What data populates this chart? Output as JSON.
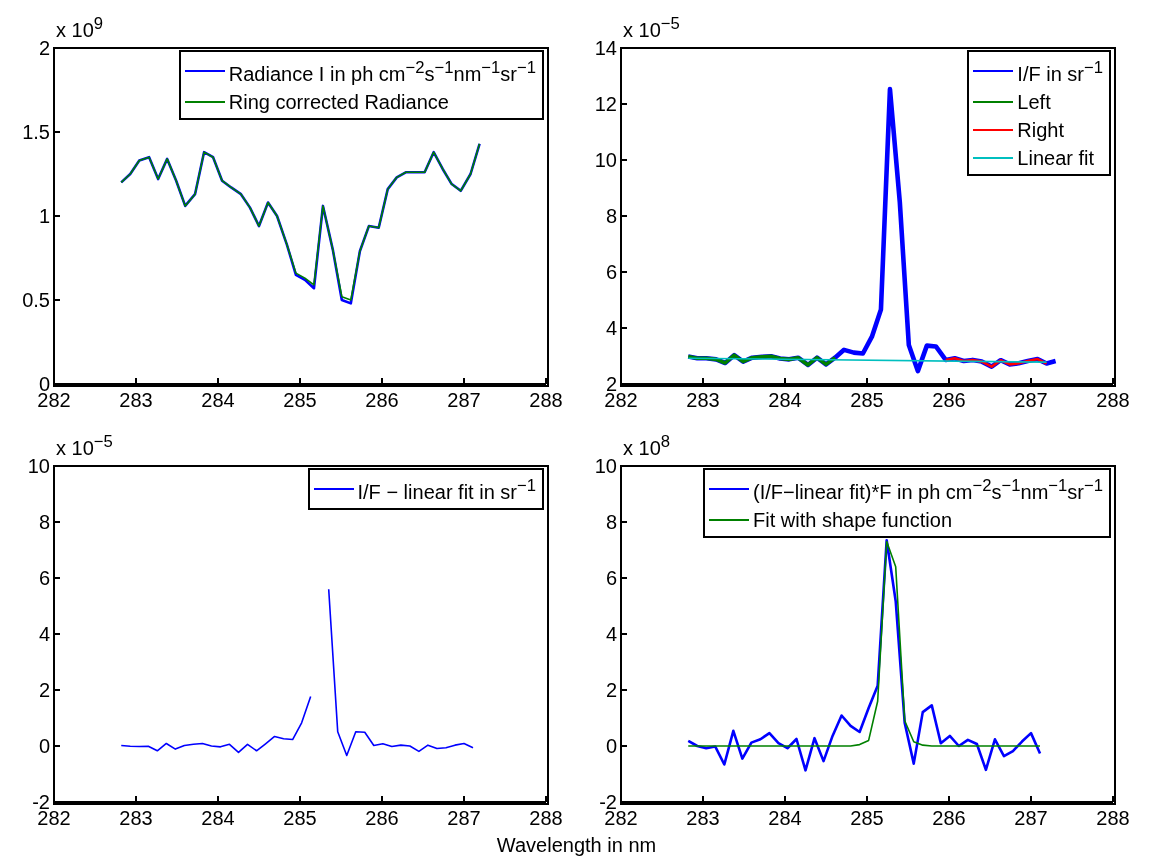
{
  "chart_data": [
    {
      "type": "line",
      "annotations": [
        "x 10$^{9}$"
      ],
      "xlim": [
        282,
        288
      ],
      "xticks": [
        282,
        283,
        284,
        285,
        286,
        287,
        288
      ],
      "ylim": [
        0,
        2
      ],
      "yticks": [
        0,
        0.5,
        1,
        1.5,
        2
      ],
      "legend": "top right",
      "grid": false,
      "series": [
        {
          "name": "Radiance I in ph cm$^{−2}$s$^{−1}$nm$^{−1}$sr$^{−1}$",
          "color": "#0000ff",
          "x": [
            282.82,
            282.93,
            283.04,
            283.16,
            283.27,
            283.38,
            283.49,
            283.6,
            283.72,
            283.83,
            283.94,
            284.05,
            284.16,
            284.28,
            284.39,
            284.5,
            284.61,
            284.72,
            284.84,
            284.95,
            285.06,
            285.17,
            285.28,
            285.4,
            285.51,
            285.62,
            285.73,
            285.84,
            285.96,
            286.07,
            286.18,
            286.29,
            286.4,
            286.52,
            286.63,
            286.74,
            286.85,
            286.96,
            287.08,
            287.19
          ],
          "values": [
            1.2,
            1.25,
            1.33,
            1.35,
            1.22,
            1.34,
            1.21,
            1.06,
            1.13,
            1.38,
            1.35,
            1.21,
            1.17,
            1.13,
            1.05,
            0.94,
            1.08,
            1.0,
            0.83,
            0.65,
            0.62,
            0.57,
            1.06,
            0.8,
            0.5,
            0.48,
            0.79,
            0.94,
            0.93,
            1.16,
            1.23,
            1.26,
            1.26,
            1.26,
            1.38,
            1.28,
            1.19,
            1.15,
            1.25,
            1.43
          ]
        },
        {
          "name": "Ring corrected Radiance",
          "color": "#008000",
          "x": [
            282.82,
            282.93,
            283.04,
            283.16,
            283.27,
            283.38,
            283.49,
            283.6,
            283.72,
            283.83,
            283.94,
            284.05,
            284.16,
            284.28,
            284.39,
            284.5,
            284.61,
            284.72,
            284.84,
            284.95,
            285.06,
            285.17,
            285.28,
            285.4,
            285.51,
            285.62,
            285.73,
            285.84,
            285.96,
            286.07,
            286.18,
            286.29,
            286.4,
            286.52,
            286.63,
            286.74,
            286.85,
            286.96,
            287.08,
            287.19
          ],
          "values": [
            1.2,
            1.25,
            1.33,
            1.35,
            1.22,
            1.34,
            1.21,
            1.06,
            1.13,
            1.38,
            1.35,
            1.21,
            1.17,
            1.13,
            1.05,
            0.94,
            1.08,
            1.0,
            0.83,
            0.66,
            0.63,
            0.59,
            1.06,
            0.8,
            0.52,
            0.5,
            0.79,
            0.94,
            0.93,
            1.16,
            1.23,
            1.26,
            1.26,
            1.26,
            1.38,
            1.28,
            1.19,
            1.15,
            1.25,
            1.43
          ]
        }
      ]
    },
    {
      "type": "line",
      "annotations": [
        "x 10$^{−5}$"
      ],
      "xlim": [
        282,
        288
      ],
      "xticks": [
        282,
        283,
        284,
        285,
        286,
        287,
        288
      ],
      "ylim": [
        2,
        14
      ],
      "yticks": [
        2,
        4,
        6,
        8,
        10,
        12,
        14
      ],
      "legend": "top right",
      "grid": false,
      "series": [
        {
          "name": "I/F in sr$^{−1}$",
          "color": "#0000ff",
          "x": [
            282.82,
            282.93,
            283.04,
            283.16,
            283.27,
            283.38,
            283.49,
            283.6,
            283.72,
            283.83,
            283.94,
            284.05,
            284.16,
            284.28,
            284.39,
            284.5,
            284.61,
            284.72,
            284.84,
            284.95,
            285.06,
            285.17,
            285.28,
            285.4,
            285.51,
            285.62,
            285.73,
            285.84,
            285.96,
            286.07,
            286.18,
            286.29,
            286.4,
            286.52,
            286.63,
            286.74,
            286.85,
            286.96,
            287.08,
            287.19,
            287.3
          ],
          "values": [
            2.98,
            2.92,
            2.92,
            2.88,
            2.75,
            3.03,
            2.8,
            2.94,
            2.97,
            2.99,
            2.91,
            2.88,
            2.94,
            2.68,
            2.94,
            2.7,
            2.94,
            3.22,
            3.12,
            3.09,
            3.69,
            4.66,
            12.53,
            8.5,
            3.39,
            2.46,
            3.37,
            3.34,
            2.86,
            2.92,
            2.82,
            2.86,
            2.8,
            2.62,
            2.85,
            2.7,
            2.74,
            2.82,
            2.89,
            2.73,
            2.82
          ]
        },
        {
          "name": "Left",
          "color": "#008000",
          "x": [
            282.82,
            282.93,
            283.04,
            283.16,
            283.27,
            283.38,
            283.49,
            283.6,
            283.72,
            283.83,
            283.94,
            284.05,
            284.16,
            284.28,
            284.39,
            284.5,
            284.61
          ],
          "values": [
            2.98,
            2.92,
            2.92,
            2.88,
            2.75,
            3.03,
            2.8,
            2.94,
            2.97,
            2.99,
            2.91,
            2.88,
            2.94,
            2.68,
            2.94,
            2.7,
            2.94
          ]
        },
        {
          "name": "Right",
          "color": "#ff0000",
          "x": [
            285.96,
            286.07,
            286.18,
            286.29,
            286.4,
            286.52,
            286.63,
            286.74,
            286.85,
            286.96,
            287.08,
            287.19
          ],
          "values": [
            2.86,
            2.92,
            2.82,
            2.86,
            2.8,
            2.62,
            2.85,
            2.7,
            2.74,
            2.82,
            2.89,
            2.73
          ]
        },
        {
          "name": "Linear fit",
          "color": "#00bfbf",
          "x": [
            282.82,
            287.19
          ],
          "values": [
            2.92,
            2.78
          ]
        }
      ]
    },
    {
      "type": "line",
      "annotations": [
        "x 10$^{−5}$"
      ],
      "xlabel": "Wavelength in nm",
      "xlim": [
        282,
        288
      ],
      "xticks": [
        282,
        283,
        284,
        285,
        286,
        287,
        288
      ],
      "ylim": [
        -2,
        10
      ],
      "yticks": [
        -2,
        0,
        2,
        4,
        6,
        8,
        10
      ],
      "legend": "top right",
      "grid": false,
      "series": [
        {
          "name": "I/F − linear fit in sr$^{−1}$",
          "color": "#0000ff",
          "x": [
            282.82,
            282.93,
            283.04,
            283.15,
            283.26,
            283.37,
            283.48,
            283.59,
            283.7,
            283.81,
            283.92,
            284.03,
            284.14,
            284.25,
            284.36,
            284.47,
            284.58,
            284.69,
            284.8,
            284.91,
            285.02,
            285.13,
            285.24,
            285.35,
            285.46,
            285.57,
            285.68,
            285.79,
            285.9,
            286.01,
            286.12,
            286.23,
            286.34,
            286.45,
            286.56,
            286.67,
            286.78,
            286.89,
            287.0,
            287.11
          ],
          "values": [
            0.02,
            -0.01,
            -0.02,
            -0.01,
            -0.17,
            0.09,
            -0.11,
            0.02,
            0.06,
            0.09,
            0,
            -0.03,
            0.06,
            -0.23,
            0.06,
            -0.17,
            0.08,
            0.34,
            0.26,
            0.23,
            0.83,
            1.77,
            null,
            5.6,
            0.51,
            -0.34,
            0.51,
            0.49,
            0.02,
            0.08,
            -0.02,
            0.03,
            0,
            -0.19,
            0.03,
            -0.09,
            -0.06,
            0.03,
            0.09,
            -0.06
          ]
        }
      ]
    },
    {
      "type": "line",
      "annotations": [
        "x 10$^{8}$"
      ],
      "xlim": [
        282,
        288
      ],
      "xticks": [
        282,
        283,
        284,
        285,
        286,
        287,
        288
      ],
      "ylim": [
        -2,
        10
      ],
      "yticks": [
        -2,
        0,
        2,
        4,
        6,
        8,
        10
      ],
      "legend": "top right",
      "grid": false,
      "series": [
        {
          "name": "(I/F−linear fit)*F in ph cm$^{−2}$s$^{−1}$nm$^{−1}$sr$^{−1}$",
          "color": "#0000ff",
          "x": [
            282.82,
            282.93,
            283.04,
            283.15,
            283.26,
            283.37,
            283.48,
            283.59,
            283.7,
            283.81,
            283.92,
            284.03,
            284.14,
            284.25,
            284.36,
            284.47,
            284.58,
            284.69,
            284.8,
            284.91,
            285.02,
            285.13,
            285.24,
            285.35,
            285.46,
            285.57,
            285.68,
            285.79,
            285.9,
            286.01,
            286.12,
            286.23,
            286.34,
            286.45,
            286.56,
            286.67,
            286.78,
            286.89,
            287.0,
            287.11
          ],
          "values": [
            0.18,
            0,
            -0.08,
            -0.02,
            -0.66,
            0.54,
            -0.45,
            0.12,
            0.24,
            0.46,
            0.1,
            -0.08,
            0.25,
            -0.87,
            0.28,
            -0.54,
            0.36,
            1.09,
            0.72,
            0.5,
            1.36,
            2.15,
            7.35,
            5.17,
            0.82,
            -0.63,
            1.21,
            1.45,
            0.1,
            0.36,
            0,
            0.22,
            0.07,
            -0.85,
            0.24,
            -0.36,
            -0.18,
            0.16,
            0.46,
            -0.27
          ]
        },
        {
          "name": "Fit with shape function",
          "color": "#008000",
          "x": [
            282.82,
            282.93,
            283.04,
            283.15,
            283.26,
            283.37,
            283.48,
            283.59,
            283.7,
            283.81,
            283.92,
            284.03,
            284.14,
            284.25,
            284.36,
            284.47,
            284.58,
            284.69,
            284.8,
            284.91,
            285.02,
            285.13,
            285.24,
            285.35,
            285.46,
            285.57,
            285.68,
            285.79,
            285.9,
            286.01,
            286.12,
            286.23,
            286.34,
            286.45,
            286.56,
            286.67,
            286.78,
            286.89,
            287.0,
            287.11
          ],
          "values": [
            0,
            0,
            0,
            0,
            0,
            0,
            0,
            0,
            0,
            0,
            0,
            0,
            0,
            0,
            0,
            0,
            0,
            0,
            0,
            0.05,
            0.2,
            1.6,
            7.3,
            6.4,
            0.9,
            0.15,
            0.03,
            0,
            0,
            0,
            0,
            0,
            0,
            0,
            0,
            0,
            0,
            0,
            0,
            0
          ]
        }
      ]
    }
  ]
}
